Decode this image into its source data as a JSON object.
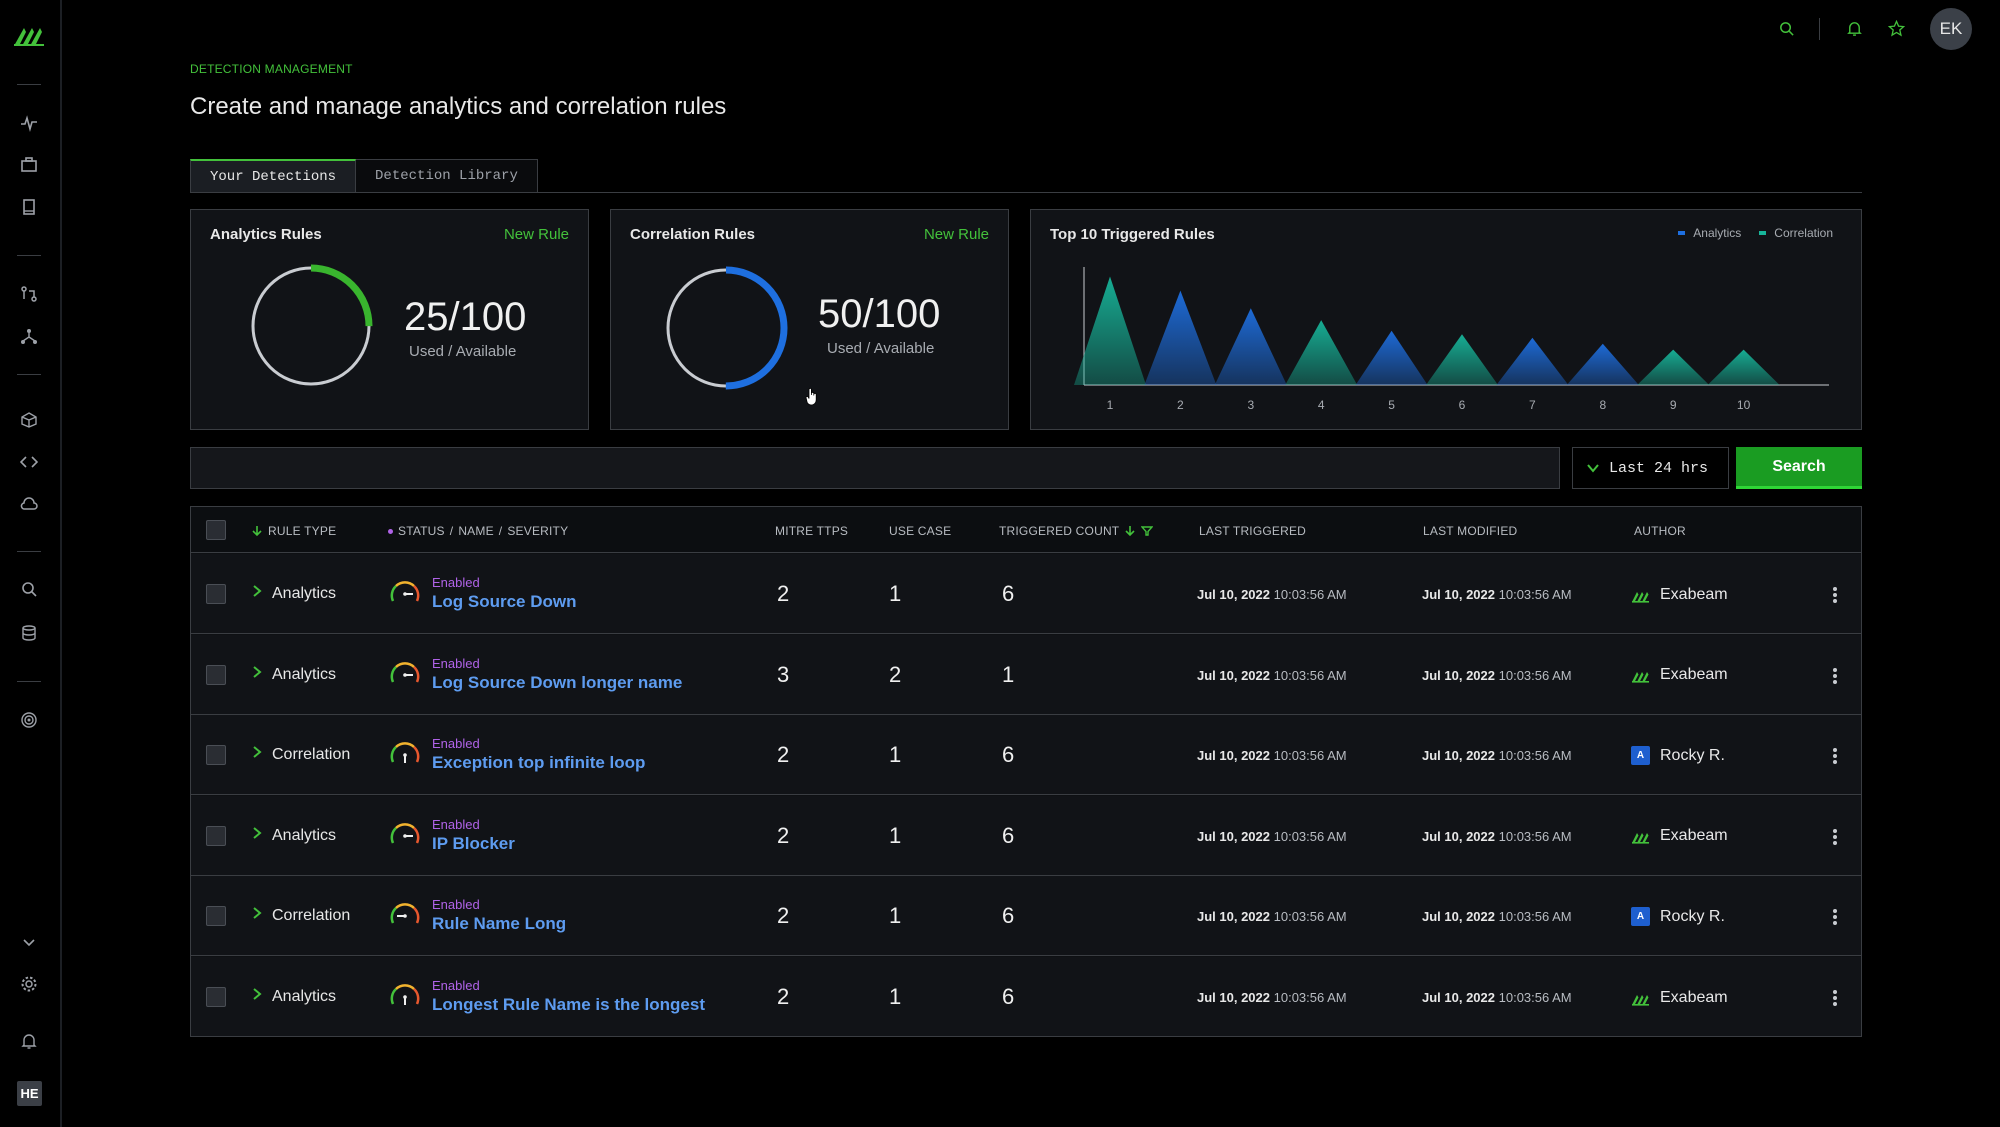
{
  "user": {
    "initials": "EK",
    "sidebar_initials": "HE"
  },
  "colors": {
    "accent": "#43c13b",
    "link": "#5e9cf0",
    "status": "#b063e8",
    "analytics": "#1e6fe0",
    "correlation": "#17b59a"
  },
  "sidebar": {
    "icons": [
      "brand-logo",
      "activity-icon",
      "briefcase-icon",
      "book-icon",
      "git-compare-icon",
      "network-icon",
      "cube-icon",
      "code-icon",
      "cloud-icon",
      "search-icon",
      "database-icon",
      "target-icon",
      "chevron-down-icon",
      "gear-icon",
      "bell-icon"
    ]
  },
  "header": {
    "eyebrow": "DETECTION MANAGEMENT",
    "title": "Create and manage analytics and correlation rules"
  },
  "tabs": [
    {
      "label": "Your Detections",
      "active": true
    },
    {
      "label": "Detection Library",
      "active": false
    }
  ],
  "cards": {
    "analytics": {
      "title": "Analytics Rules",
      "link": "New Rule",
      "value": "25/100",
      "caption": "Used / Available",
      "used_fraction": 0.25
    },
    "correlation": {
      "title": "Correlation Rules",
      "link": "New Rule",
      "value": "50/100",
      "caption": "Used / Available",
      "used_fraction": 0.5
    },
    "top10": {
      "title": "Top 10 Triggered Rules"
    }
  },
  "chart_data": {
    "type": "area",
    "title": "Top 10 Triggered Rules",
    "categories": [
      "1",
      "2",
      "3",
      "4",
      "5",
      "6",
      "7",
      "8",
      "9",
      "10"
    ],
    "series": [
      {
        "name": "Analytics",
        "color": "#1e6fe0",
        "values": [
          0,
          80,
          65,
          0,
          46,
          0,
          40,
          35,
          0,
          0
        ]
      },
      {
        "name": "Correlation",
        "color": "#17b59a",
        "values": [
          92,
          0,
          0,
          55,
          0,
          43,
          0,
          0,
          30,
          30
        ]
      }
    ],
    "legend": "top-right",
    "ylim": [
      0,
      100
    ]
  },
  "search": {
    "placeholder": "",
    "time_range": "Last 24 hrs",
    "button": "Search"
  },
  "table": {
    "headers": {
      "rule_type": "RULE TYPE",
      "status_name_severity": [
        "STATUS",
        "/",
        "NAME",
        "/",
        "SEVERITY"
      ],
      "mitre": "MITRE TTPS",
      "use_case": "USE CASE",
      "triggered": "TRIGGERED COUNT",
      "last_triggered": "LAST TRIGGERED",
      "last_modified": "LAST MODIFIED",
      "author": "AUTHOR"
    },
    "rows": [
      {
        "type": "Analytics",
        "status": "Enabled",
        "name": "Log Source Down",
        "severity_angle": 90,
        "mitre": "2",
        "use_case": "1",
        "triggered": "6",
        "lt_date": "Jul 10, 2022",
        "lt_time": "10:03:56 AM",
        "lm_date": "Jul 10, 2022",
        "lm_time": "10:03:56 AM",
        "author": "Exabeam",
        "author_kind": "logo"
      },
      {
        "type": "Analytics",
        "status": "Enabled",
        "name": "Log Source Down longer name",
        "severity_angle": 90,
        "mitre": "3",
        "use_case": "2",
        "triggered": "1",
        "lt_date": "Jul 10, 2022",
        "lt_time": "10:03:56 AM",
        "lm_date": "Jul 10, 2022",
        "lm_time": "10:03:56 AM",
        "author": "Exabeam",
        "author_kind": "logo"
      },
      {
        "type": "Correlation",
        "status": "Enabled",
        "name": "Exception top infinite loop",
        "severity_angle": 180,
        "mitre": "2",
        "use_case": "1",
        "triggered": "6",
        "lt_date": "Jul 10, 2022",
        "lt_time": "10:03:56 AM",
        "lm_date": "Jul 10, 2022",
        "lm_time": "10:03:56 AM",
        "author": "Rocky R.",
        "author_kind": "badge",
        "badge": "A"
      },
      {
        "type": "Analytics",
        "status": "Enabled",
        "name": "IP Blocker",
        "severity_angle": 90,
        "mitre": "2",
        "use_case": "1",
        "triggered": "6",
        "lt_date": "Jul 10, 2022",
        "lt_time": "10:03:56 AM",
        "lm_date": "Jul 10, 2022",
        "lm_time": "10:03:56 AM",
        "author": "Exabeam",
        "author_kind": "logo"
      },
      {
        "type": "Correlation",
        "status": "Enabled",
        "name": "Rule Name Long",
        "severity_angle": 270,
        "mitre": "2",
        "use_case": "1",
        "triggered": "6",
        "lt_date": "Jul 10, 2022",
        "lt_time": "10:03:56 AM",
        "lm_date": "Jul 10, 2022",
        "lm_time": "10:03:56 AM",
        "author": "Rocky R.",
        "author_kind": "badge",
        "badge": "A"
      },
      {
        "type": "Analytics",
        "status": "Enabled",
        "name": "Longest Rule Name is the longest",
        "severity_angle": 180,
        "mitre": "2",
        "use_case": "1",
        "triggered": "6",
        "lt_date": "Jul 10, 2022",
        "lt_time": "10:03:56 AM",
        "lm_date": "Jul 10, 2022",
        "lm_time": "10:03:56 AM",
        "author": "Exabeam",
        "author_kind": "logo"
      }
    ]
  }
}
